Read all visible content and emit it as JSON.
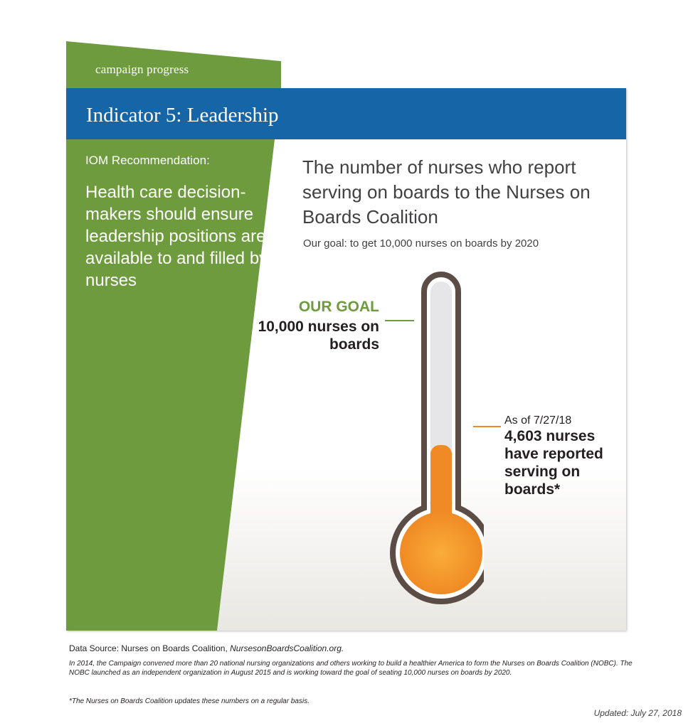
{
  "tab_label": "campaign progress",
  "header": {
    "title": "Indicator 5: Leadership"
  },
  "recommendation": {
    "label": "IOM Recommendation:",
    "text": "Health care decision-makers should ensure leadership positions are available to and filled by nurses"
  },
  "headline": "The number of nurses who report serving on boards to the Nurses on Boards Coalition",
  "subline": "Our goal: to get 10,000 nurses on boards by 2020",
  "goal": {
    "label": "OUR GOAL",
    "text": "10,000 nurses on boards"
  },
  "current": {
    "label": "As of 7/27/18",
    "text": "4,603 nurses have reported serving on boards*"
  },
  "footer": {
    "source_prefix": "Data Source: Nurses on Boards Coalition, ",
    "source_link": "NursesonBoardsCoalition.org.",
    "note": "In 2014, the Campaign convened more than 20 national nursing organizations and others working to build a healthier America to form the Nurses on Boards Coalition (NOBC). The NOBC launched as an independent organization in August 2015 and is working toward the goal of seating 10,000 nurses on boards by 2020.",
    "footnote": "*The Nurses on Boards Coalition updates these numbers on a regular basis.",
    "updated": "Updated: July 27, 2018"
  },
  "colors": {
    "green": "#6e9b3e",
    "blue": "#1565a7",
    "orange": "#f08a24",
    "tube_outline": "#5b4d45"
  },
  "chart_data": {
    "type": "thermometer",
    "goal": 10000,
    "value": 4603,
    "unit": "nurses",
    "value_date": "7/27/18"
  }
}
